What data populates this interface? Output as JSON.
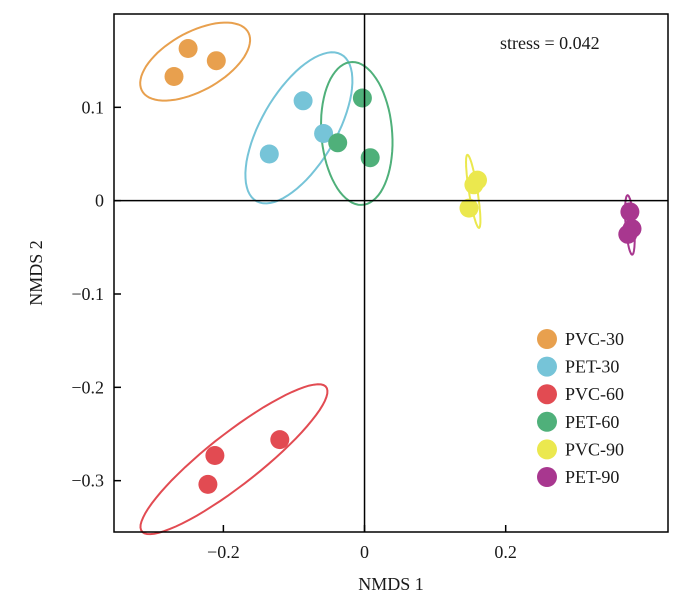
{
  "chart_data": {
    "type": "scatter",
    "title": "",
    "xlabel": "NMDS 1",
    "ylabel": "NMDS 2",
    "xlim": [
      -0.355,
      0.43
    ],
    "ylim": [
      -0.355,
      0.2
    ],
    "x_ticks": [
      {
        "value": -0.2,
        "label": "−0.2"
      },
      {
        "value": 0,
        "label": "0"
      },
      {
        "value": 0.2,
        "label": "0.2"
      }
    ],
    "y_ticks": [
      {
        "value": 0.1,
        "label": "0.1"
      },
      {
        "value": 0,
        "label": "0"
      },
      {
        "value": -0.1,
        "label": "−0.1"
      },
      {
        "value": -0.2,
        "label": "−0.2"
      },
      {
        "value": -0.3,
        "label": "−0.3"
      }
    ],
    "zero_lines": true,
    "grid": false,
    "annotation": "stress = 0.042",
    "legend_position": "bottom-right",
    "series": [
      {
        "name": "PVC-30",
        "color": "#E8A04E",
        "points": [
          [
            -0.27,
            0.133
          ],
          [
            -0.25,
            0.163
          ],
          [
            -0.21,
            0.15
          ]
        ],
        "ellipse": {
          "cx": -0.24,
          "cy": 0.149,
          "rx": 0.082,
          "ry": 0.033,
          "angle": 20
        }
      },
      {
        "name": "PET-30",
        "color": "#76C4D8",
        "points": [
          [
            -0.135,
            0.05
          ],
          [
            -0.087,
            0.107
          ],
          [
            -0.058,
            0.072
          ]
        ],
        "ellipse": {
          "cx": -0.093,
          "cy": 0.078,
          "rx": 0.1,
          "ry": 0.048,
          "angle": 48
        }
      },
      {
        "name": "PVC-60",
        "color": "#E24B52",
        "points": [
          [
            -0.222,
            -0.304
          ],
          [
            -0.212,
            -0.273
          ],
          [
            -0.12,
            -0.256
          ]
        ],
        "ellipse": {
          "cx": -0.185,
          "cy": -0.277,
          "rx": 0.152,
          "ry": 0.03,
          "angle": 30
        }
      },
      {
        "name": "PET-60",
        "color": "#4FB07A",
        "points": [
          [
            -0.038,
            0.062
          ],
          [
            -0.003,
            0.11
          ],
          [
            0.008,
            0.046
          ]
        ],
        "ellipse": {
          "cx": -0.011,
          "cy": 0.072,
          "rx": 0.05,
          "ry": 0.077,
          "angle": 8
        }
      },
      {
        "name": "PVC-90",
        "color": "#EBE84E",
        "points": [
          [
            0.148,
            -0.008
          ],
          [
            0.155,
            0.017
          ],
          [
            0.16,
            0.022
          ]
        ],
        "ellipse": {
          "cx": 0.154,
          "cy": 0.01,
          "rx": 0.006,
          "ry": 0.04,
          "angle": 12
        }
      },
      {
        "name": "PET-90",
        "color": "#A8378F",
        "points": [
          [
            0.376,
            -0.012
          ],
          [
            0.379,
            -0.03
          ],
          [
            0.373,
            -0.036
          ]
        ],
        "ellipse": {
          "cx": 0.376,
          "cy": -0.026,
          "rx": 0.006,
          "ry": 0.032,
          "angle": 6
        }
      }
    ]
  }
}
